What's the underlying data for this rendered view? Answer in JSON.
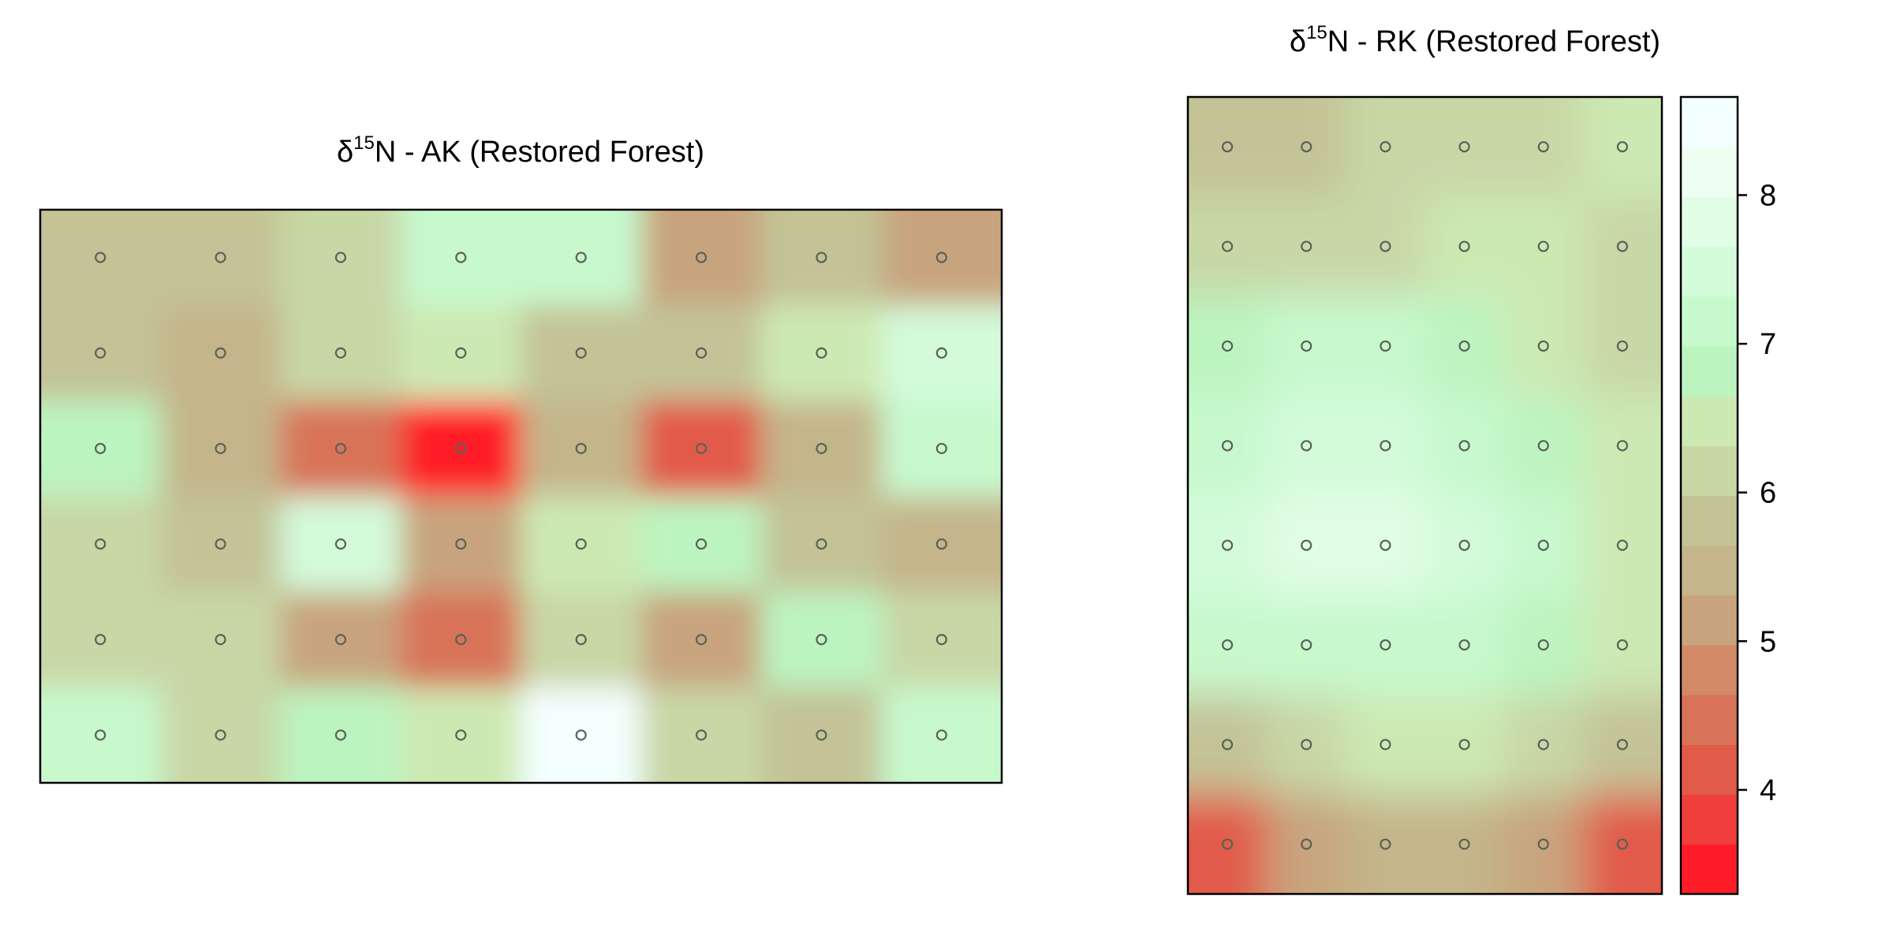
{
  "chart_data": [
    {
      "type": "heatmap",
      "title": {
        "prefix": "δ",
        "superscript": "15",
        "main": "N - AK (Restored Forest)"
      },
      "grid": {
        "cols": 8,
        "rows": 6
      },
      "values": [
        [
          5.8,
          5.8,
          6.3,
          7.3,
          7.0,
          5.3,
          5.8,
          5.3
        ],
        [
          5.8,
          5.5,
          6.2,
          6.5,
          5.8,
          5.7,
          6.4,
          7.4
        ],
        [
          6.9,
          5.6,
          4.4,
          3.6,
          5.6,
          4.2,
          5.6,
          7.0
        ],
        [
          6.0,
          5.9,
          7.6,
          5.0,
          6.4,
          6.9,
          5.8,
          5.4
        ],
        [
          6.3,
          6.0,
          5.1,
          4.6,
          6.0,
          5.2,
          6.8,
          6.2
        ],
        [
          7.1,
          6.0,
          6.9,
          6.4,
          8.6,
          6.2,
          5.9,
          7.0
        ]
      ]
    },
    {
      "type": "heatmap",
      "title": {
        "prefix": "δ",
        "superscript": "15",
        "main": "N - RK (Restored Forest)"
      },
      "grid": {
        "cols": 6,
        "rows": 8
      },
      "values": [
        [
          5.8,
          5.9,
          6.0,
          6.2,
          6.3,
          6.4
        ],
        [
          6.1,
          6.2,
          6.3,
          6.4,
          6.4,
          6.3
        ],
        [
          6.9,
          7.0,
          7.0,
          6.9,
          6.5,
          6.3
        ],
        [
          7.3,
          7.5,
          7.5,
          7.2,
          6.9,
          6.5
        ],
        [
          7.4,
          7.7,
          7.8,
          7.6,
          7.0,
          6.6
        ],
        [
          7.0,
          7.2,
          7.3,
          7.0,
          6.8,
          6.5
        ],
        [
          5.8,
          6.2,
          6.6,
          6.6,
          6.3,
          5.9
        ],
        [
          4.2,
          5.1,
          5.4,
          5.4,
          5.0,
          4.3
        ]
      ]
    }
  ],
  "colorbar": {
    "min": 3.3,
    "max": 8.66,
    "levels": 16,
    "ticks": [
      "4",
      "5",
      "6",
      "7",
      "8"
    ],
    "colors": [
      "#ff1c28",
      "#f03e3a",
      "#e25a48",
      "#d87359",
      "#d28a69",
      "#c8a47e",
      "#c4b58a",
      "#c3c397",
      "#c8d7a6",
      "#cde9b3",
      "#bcf4c0",
      "#c7f9cd",
      "#d3fbda",
      "#e1fde5",
      "#eefef1",
      "#f4ffff"
    ]
  }
}
